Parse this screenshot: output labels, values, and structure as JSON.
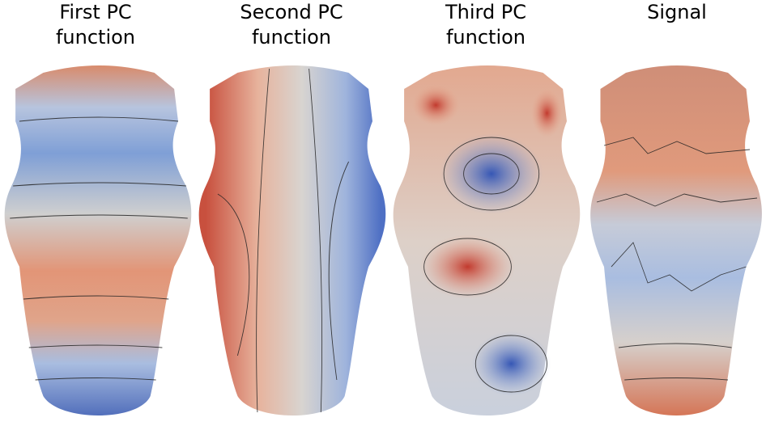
{
  "panels": [
    {
      "title_lines": [
        "First PC",
        "function"
      ]
    },
    {
      "title_lines": [
        "Second PC",
        "function"
      ]
    },
    {
      "title_lines": [
        "Third PC",
        "function"
      ]
    },
    {
      "title_lines": [
        "Signal"
      ]
    }
  ]
}
